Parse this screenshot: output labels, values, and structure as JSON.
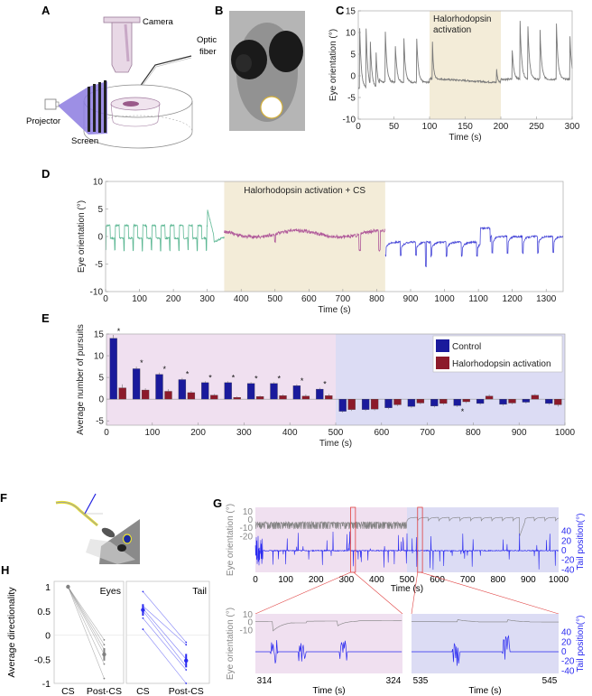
{
  "panel_labels": [
    "A",
    "B",
    "C",
    "D",
    "E",
    "F",
    "G",
    "H"
  ],
  "panelA": {
    "labels": {
      "camera": "Camera",
      "optic_fiber_1": "Optic",
      "optic_fiber_2": "fiber",
      "projector": "Projector",
      "screen": "Screen"
    },
    "colors": {
      "camera": "#e8d8e6",
      "beam": "#8c7be0",
      "stripe": "#222222"
    }
  },
  "panelB": {
    "description": "Larva head with optic fiber spot",
    "circle_color": "#d4b03a"
  },
  "chart_data": [
    {
      "id": "C",
      "type": "line",
      "title": "",
      "xlabel": "Time (s)",
      "ylabel": "Eye orientation (°)",
      "xlim": [
        0,
        300
      ],
      "ylim": [
        -10,
        15
      ],
      "xticks": [
        0,
        50,
        100,
        150,
        200,
        250,
        300
      ],
      "yticks": [
        -10,
        -5,
        0,
        5,
        10,
        15
      ],
      "shaded_regions": [
        {
          "x0": 100,
          "x1": 200,
          "label_line1": "Halorhodopsin",
          "label_line2": "activation",
          "color": "#f3ecd8"
        }
      ],
      "series": [
        {
          "name": "eye",
          "color": "#7a7a7a",
          "spikes_x": [
            2,
            11,
            17,
            25,
            38,
            52,
            64,
            82,
            104,
            194,
            216,
            227,
            238,
            255,
            278,
            297
          ],
          "spikes_y": [
            11,
            10.5,
            7,
            5,
            10,
            7,
            8.5,
            8.5,
            8,
            1.5,
            6,
            12.5,
            11.5,
            10.5,
            12,
            9
          ],
          "baseline_before": -2.5,
          "baseline_during": -1,
          "baseline_after": -0.5
        }
      ]
    },
    {
      "id": "D",
      "type": "line",
      "xlabel": "Time (s)",
      "ylabel": "Eye orientation (°)",
      "xlim": [
        0,
        1350
      ],
      "ylim": [
        -10,
        10
      ],
      "xticks": [
        0,
        100,
        200,
        300,
        400,
        500,
        600,
        700,
        800,
        900,
        1000,
        1100,
        1200,
        1300
      ],
      "yticks": [
        -10,
        -5,
        0,
        5,
        10
      ],
      "shaded_regions": [
        {
          "x0": 350,
          "x1": 825,
          "label": "Halorhodopsin activation + CS",
          "color": "#f3ecd8"
        }
      ],
      "series": [
        {
          "name": "pre",
          "color": "#5db894",
          "x0": 0,
          "x1": 350
        },
        {
          "name": "CS",
          "color": "#b05a9a",
          "x0": 350,
          "x1": 825
        },
        {
          "name": "post",
          "color": "#4a4ad8",
          "x0": 825,
          "x1": 1350
        }
      ]
    },
    {
      "id": "E",
      "type": "bar",
      "xlabel": "Time (s)",
      "ylabel": "Average number of pursuits",
      "xlim": [
        0,
        1000
      ],
      "ylim": [
        -6,
        15
      ],
      "xticks": [
        0,
        100,
        200,
        300,
        400,
        500,
        600,
        700,
        800,
        900,
        1000
      ],
      "yticks": [
        -5,
        0,
        5,
        10,
        15
      ],
      "background_regions": [
        {
          "x0": 0,
          "x1": 500,
          "color": "#f0e0f0"
        },
        {
          "x0": 500,
          "x1": 1000,
          "color": "#dcdcf4"
        }
      ],
      "categories": [
        25,
        75,
        125,
        175,
        225,
        275,
        325,
        375,
        425,
        475,
        525,
        575,
        625,
        675,
        725,
        775,
        825,
        875,
        925,
        975
      ],
      "series": [
        {
          "name": "Control",
          "color": "#1a1a9c",
          "values": [
            14,
            7,
            5.7,
            4.5,
            3.8,
            3.8,
            3.6,
            3.6,
            3.1,
            2.3,
            -2.8,
            -2.4,
            -2.0,
            -1.7,
            -1.6,
            -1.5,
            -1.0,
            -1.2,
            -0.7,
            -1.0
          ],
          "errors": [
            0.8,
            0.5,
            0.4,
            0.4,
            0.3,
            0.3,
            0.3,
            0.3,
            0.3,
            0.3,
            0.3,
            0.3,
            0.3,
            0.3,
            0.3,
            0.3,
            0.3,
            0.3,
            0.3,
            0.3
          ]
        },
        {
          "name": "Halorhodopsin activation",
          "color": "#8c1a2a",
          "values": [
            2.6,
            2.1,
            1.8,
            1.5,
            0.9,
            0.4,
            0.6,
            0.8,
            0.7,
            0.8,
            -2.4,
            -2.3,
            -1.3,
            -0.9,
            -1.0,
            -0.6,
            0.7,
            -0.9,
            0.9,
            -1.3
          ],
          "errors": [
            0.8,
            0.4,
            0.5,
            0.4,
            0.3,
            0.2,
            0.2,
            0.3,
            0.4,
            0.4,
            0.3,
            0.3,
            0.3,
            0.3,
            0.3,
            0.3,
            0.4,
            0.3,
            0.3,
            0.4
          ]
        }
      ],
      "significance_markers": [
        25,
        75,
        125,
        175,
        225,
        275,
        325,
        375,
        425,
        475,
        775
      ],
      "marker_symbol": "*",
      "legend": {
        "placement": "top-right",
        "entries": [
          "Control",
          "Halorhodopsin activation"
        ]
      }
    },
    {
      "id": "G-top",
      "type": "line",
      "xlabel": "Time (s)",
      "ylabel_left": "Eye orientation (°)",
      "ylabel_right": "Tail position(°)",
      "xlim": [
        0,
        1000
      ],
      "xticks": [
        0,
        100,
        200,
        300,
        400,
        500,
        600,
        700,
        800,
        900,
        1000
      ],
      "yticks_left": [
        10,
        0,
        -10,
        -20
      ],
      "yticks_right": [
        40,
        20,
        0,
        -20,
        -40
      ],
      "background_regions": [
        {
          "x0": 0,
          "x1": 500,
          "color": "#f0e0f0"
        },
        {
          "x0": 500,
          "x1": 1000,
          "color": "#dcdcf4"
        }
      ],
      "zoom_boxes": [
        {
          "x0": 314,
          "x1": 324
        },
        {
          "x0": 535,
          "x1": 545
        }
      ],
      "series": [
        {
          "name": "eye",
          "color": "#808080"
        },
        {
          "name": "tail",
          "color": "#2a2af0"
        }
      ]
    },
    {
      "id": "G-zoom1",
      "type": "line",
      "xlabel": "Time (s)",
      "ylabel": "Eye orientation (°)",
      "xlim": [
        314,
        324
      ],
      "xticks": [
        314,
        324
      ],
      "yticks_left": [
        10,
        0,
        -10
      ],
      "background": "#f0e0f0"
    },
    {
      "id": "G-zoom2",
      "type": "line",
      "xlabel": "Time (s)",
      "ylabel_right": "Tail position(°)",
      "xlim": [
        535,
        545
      ],
      "xticks": [
        535,
        545
      ],
      "yticks_right": [
        40,
        20,
        0,
        -20,
        -40
      ],
      "background": "#dcdcf4"
    },
    {
      "id": "H",
      "type": "scatter",
      "ylabel": "Average directionality",
      "ylim": [
        -1,
        1
      ],
      "yticks": [
        1,
        0.5,
        0,
        -0.5,
        -1
      ],
      "panels": [
        {
          "title": "Eyes",
          "color": "#808080",
          "categories": [
            "CS",
            "Post-CS"
          ],
          "pairs": [
            [
              1,
              -0.1
            ],
            [
              1,
              -0.2
            ],
            [
              1,
              -0.3
            ],
            [
              1,
              -0.4
            ],
            [
              1,
              -0.6
            ],
            [
              1,
              -0.9
            ]
          ],
          "mean": [
            1,
            -0.4
          ],
          "err": [
            0.02,
            0.13
          ]
        },
        {
          "title": "Tail",
          "color": "#2a2af0",
          "categories": [
            "CS",
            "Post-CS"
          ],
          "pairs": [
            [
              0.9,
              -0.15
            ],
            [
              0.6,
              -0.2
            ],
            [
              0.55,
              -0.5
            ],
            [
              0.5,
              -0.65
            ],
            [
              0.35,
              -0.72
            ],
            [
              0.12,
              -1.0
            ]
          ],
          "mean": [
            0.52,
            -0.53
          ],
          "err": [
            0.12,
            0.14
          ]
        }
      ]
    }
  ]
}
